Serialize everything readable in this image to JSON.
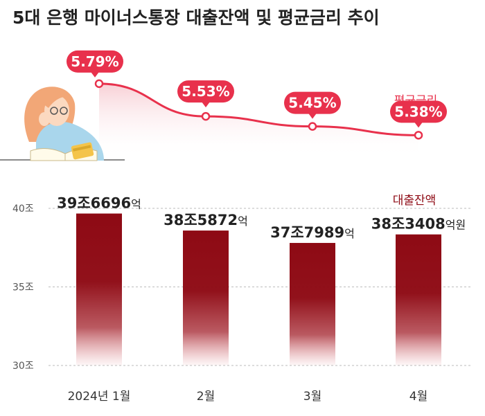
{
  "title": "5대 은행 마이너스통장 대출잔액 및 평균금리 추이",
  "colors": {
    "rate_line": "#e8314c",
    "rate_pill": "#e8314c",
    "rate_label": "#e8314c",
    "bar": "#8e0a14",
    "balance_label": "#8e0a14",
    "axis_text": "#555555",
    "grid": "#bbbbbb"
  },
  "illustration": {
    "icon": "woman-reading-book-with-card-icon"
  },
  "chart_data": [
    {
      "type": "line",
      "series": [
        {
          "name": "평균금리",
          "values": [
            5.79,
            5.53,
            5.45,
            5.38
          ]
        }
      ],
      "categories": [
        "2024년 1월",
        "2월",
        "3월",
        "4월"
      ],
      "data_labels": [
        "5.79%",
        "5.53%",
        "5.45%",
        "5.38%"
      ],
      "ylim": [
        5.2,
        5.85
      ],
      "unit": "%"
    },
    {
      "type": "bar",
      "categories": [
        "2024년 1월",
        "2월",
        "3월",
        "4월"
      ],
      "series": [
        {
          "name": "대출잔액",
          "values": [
            396696,
            385872,
            377989,
            383408
          ]
        }
      ],
      "data_labels": [
        {
          "main": "39조6696",
          "suffix": "억"
        },
        {
          "main": "38조5872",
          "suffix": "억"
        },
        {
          "main": "37조7989",
          "suffix": "억"
        },
        {
          "main": "38조3408",
          "suffix": "억원"
        }
      ],
      "y_ticks": [
        {
          "value": 400000,
          "label": "40조"
        },
        {
          "value": 350000,
          "label": "35조"
        },
        {
          "value": 300000,
          "label": "30조"
        }
      ],
      "ylim": [
        300000,
        400000
      ],
      "unit": "억원",
      "grid": true
    }
  ]
}
